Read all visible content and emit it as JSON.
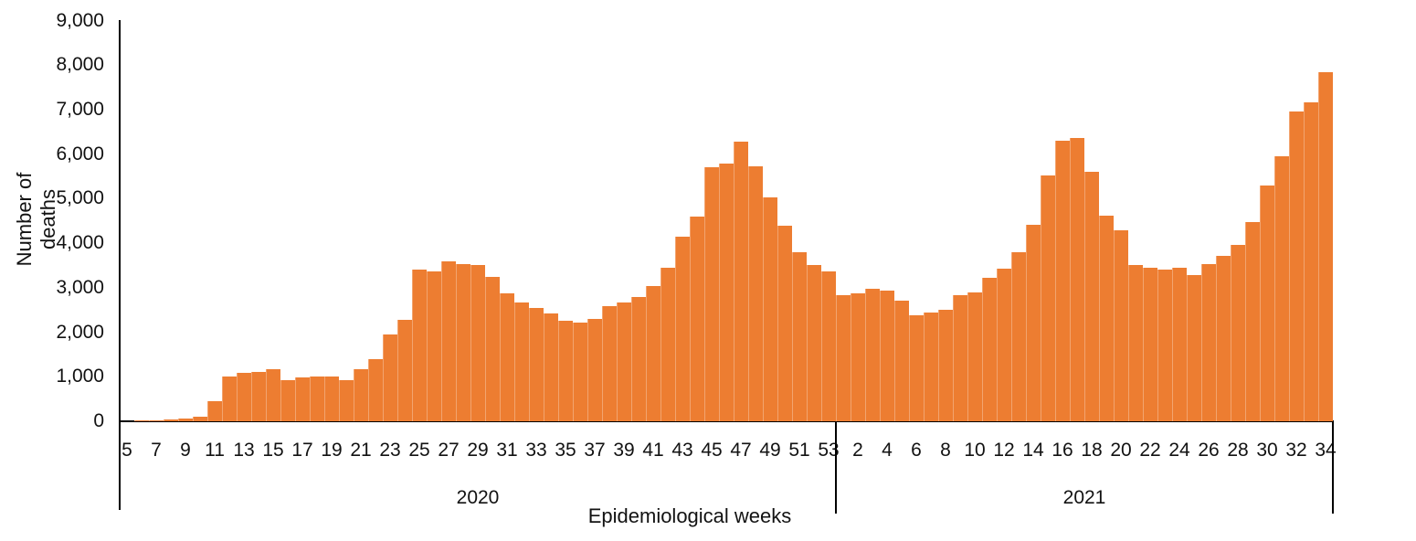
{
  "chart_data": {
    "type": "bar",
    "title": "",
    "ylabel": "Number of deaths",
    "xlabel": "Epidemiological weeks",
    "ylim": [
      0,
      9000
    ],
    "ytick_interval": 1000,
    "ytick_labels": [
      "0",
      "1,000",
      "2,000",
      "3,000",
      "4,000",
      "5,000",
      "6,000",
      "7,000",
      "8,000",
      "9,000"
    ],
    "bar_color": "#ED7D31",
    "legend": "none",
    "grid": "off",
    "groups": [
      {
        "year": "2020",
        "first_week": 5,
        "weeks": [
          5,
          6,
          7,
          8,
          9,
          10,
          11,
          12,
          13,
          14,
          15,
          16,
          17,
          18,
          19,
          20,
          21,
          22,
          23,
          24,
          25,
          26,
          27,
          28,
          29,
          30,
          31,
          32,
          33,
          34,
          35,
          36,
          37,
          38,
          39,
          40,
          41,
          42,
          43,
          44,
          45,
          46,
          47,
          48,
          49,
          50,
          51,
          52,
          53
        ],
        "values": [
          5,
          15,
          25,
          40,
          55,
          100,
          450,
          1000,
          1080,
          1100,
          1160,
          930,
          980,
          1000,
          1010,
          930,
          1170,
          1390,
          1950,
          2270,
          3400,
          3360,
          3600,
          3530,
          3510,
          3240,
          2880,
          2660,
          2550,
          2430,
          2250,
          2220,
          2290,
          2580,
          2660,
          2800,
          3030,
          3450,
          4150,
          4590,
          5710,
          5780,
          6290,
          5730,
          5030,
          4390,
          3800,
          3500,
          3370
        ],
        "labeled_weeks": [
          5,
          7,
          9,
          11,
          13,
          15,
          17,
          19,
          21,
          23,
          25,
          27,
          29,
          31,
          33,
          35,
          37,
          39,
          41,
          43,
          45,
          47,
          49,
          51,
          53
        ]
      },
      {
        "year": "2021",
        "first_week": 1,
        "weeks": [
          1,
          2,
          3,
          4,
          5,
          6,
          7,
          8,
          9,
          10,
          11,
          12,
          13,
          14,
          15,
          16,
          17,
          18,
          19,
          20,
          21,
          22,
          23,
          24,
          25,
          26,
          27,
          28,
          29,
          30,
          31,
          32,
          33,
          34
        ],
        "values": [
          2830,
          2880,
          2980,
          2930,
          2710,
          2390,
          2450,
          2510,
          2840,
          2900,
          3220,
          3430,
          3800,
          4420,
          5520,
          6310,
          6370,
          5610,
          4610,
          4290,
          3510,
          3450,
          3410,
          3450,
          3290,
          3520,
          3720,
          3960,
          4480,
          5300,
          5950,
          6950,
          7170,
          7850
        ],
        "labeled_weeks": [
          2,
          4,
          6,
          8,
          10,
          12,
          14,
          16,
          18,
          20,
          22,
          24,
          26,
          28,
          30,
          32,
          34
        ]
      }
    ]
  }
}
